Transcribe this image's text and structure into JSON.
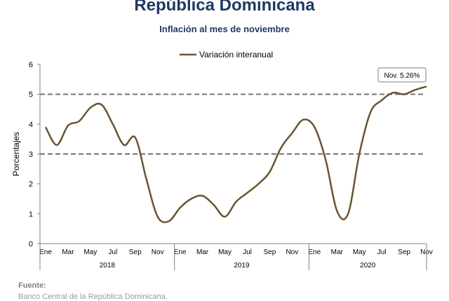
{
  "header": {
    "title": "República Dominicana",
    "subtitle": "Inflación al mes de noviembre"
  },
  "footer": {
    "fuente_label": "Fuente:",
    "fuente_text": "Banco Central de la República Dominicana."
  },
  "colors": {
    "line": "#6b5433",
    "title": "#1f3864",
    "target_band": "#7f7f7f",
    "axis": "#808080"
  },
  "chart_data": {
    "type": "line",
    "legend": "Variación interanual",
    "legend_position": "top-center",
    "ylabel": "Porcentajes",
    "ylim": [
      0,
      6
    ],
    "yticks": [
      "0",
      "1",
      "2",
      "3",
      "4",
      "5",
      "6"
    ],
    "month_ticks": [
      "Ene",
      "Mar",
      "May",
      "Jul",
      "Sep",
      "Nov",
      "Ene",
      "Mar",
      "May",
      "Jul",
      "Sep",
      "Nov",
      "Ene",
      "Mar",
      "May",
      "Jul",
      "Sep",
      "Nov"
    ],
    "years": [
      "2018",
      "2019",
      "2020"
    ],
    "x": [
      "Ene 2018",
      "Feb 2018",
      "Mar 2018",
      "Abr 2018",
      "May 2018",
      "Jun 2018",
      "Jul 2018",
      "Ago 2018",
      "Sep 2018",
      "Oct 2018",
      "Nov 2018",
      "Dic 2018",
      "Ene 2019",
      "Feb 2019",
      "Mar 2019",
      "Abr 2019",
      "May 2019",
      "Jun 2019",
      "Jul 2019",
      "Ago 2019",
      "Sep 2019",
      "Oct 2019",
      "Nov 2019",
      "Dic 2019",
      "Ene 2020",
      "Feb 2020",
      "Mar 2020",
      "Abr 2020",
      "May 2020",
      "Jun 2020",
      "Jul 2020",
      "Ago 2020",
      "Sep 2020",
      "Oct 2020",
      "Nov 2020"
    ],
    "values": [
      3.9,
      3.3,
      3.95,
      4.1,
      4.55,
      4.65,
      4.0,
      3.3,
      3.55,
      2.15,
      0.9,
      0.75,
      1.2,
      1.5,
      1.6,
      1.3,
      0.9,
      1.4,
      1.7,
      2.0,
      2.4,
      3.2,
      3.7,
      4.15,
      3.9,
      2.8,
      1.1,
      1.0,
      3.0,
      4.4,
      4.8,
      5.05,
      5.0,
      5.15,
      5.26
    ],
    "target_range": [
      3,
      5
    ],
    "annotation": "Nov. 5.26%"
  }
}
